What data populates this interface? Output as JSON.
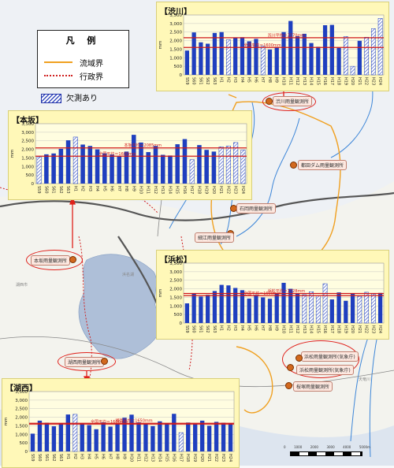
{
  "legend": {
    "title": "凡 例",
    "basin_boundary": "流域界",
    "admin_boundary": "行政界",
    "missing_label": "欠測あり",
    "colors": {
      "basin": "#f0a020",
      "admin": "#d02020",
      "bar": "#1f3fbf",
      "line": "#d01818"
    }
  },
  "stations": {
    "shibukawa": "渋川雨量観測所",
    "tsuzuki": "都田ダム雨量観測所",
    "ishioka": "石岡雨量観測所",
    "hosoe": "細江雨量観測所",
    "motosaka": "本坂雨量観測所",
    "kosai": "湖西雨量観測所",
    "hamamatsu": "浜松雨量観測所(気象庁)",
    "sakura": "桜塚雨量観測所"
  },
  "chart_data": [
    {
      "id": "shibukawa",
      "type": "bar",
      "title": "【渋川】",
      "ylabel": "mm",
      "ylim": [
        0,
        3500
      ],
      "yticks": [
        "0",
        "500",
        "1,000",
        "1,500",
        "2,000",
        "2,500",
        "3,000",
        "3,500"
      ],
      "categories": [
        "S59",
        "S60",
        "S61",
        "S62",
        "S63",
        "H1",
        "H2",
        "H3",
        "H4",
        "H5",
        "H6",
        "H7",
        "H8",
        "H9",
        "H10",
        "H11",
        "H12",
        "H13",
        "H14",
        "H15",
        "H16",
        "H17",
        "H18",
        "H19",
        "H20",
        "H21",
        "H22",
        "H23",
        "H24"
      ],
      "values": [
        1420,
        2480,
        1900,
        1820,
        2450,
        2500,
        2050,
        2150,
        2200,
        1960,
        2100,
        1680,
        1480,
        1620,
        2500,
        3150,
        2260,
        2400,
        1860,
        1640,
        2900,
        2920,
        1580,
        2240,
        500,
        1990,
        2200,
        2700,
        3300
      ],
      "missing": [
        false,
        false,
        false,
        false,
        false,
        false,
        true,
        false,
        false,
        false,
        false,
        true,
        false,
        false,
        false,
        false,
        false,
        false,
        false,
        false,
        false,
        false,
        false,
        true,
        true,
        false,
        true,
        true,
        true
      ],
      "reference_lines": [
        {
          "label": "渋川平均＝2170mm",
          "value": 2170
        },
        {
          "label": "全国平均＝1600mm",
          "value": 1600
        }
      ],
      "grid": true
    },
    {
      "id": "motosaka",
      "type": "bar",
      "title": "【本坂】",
      "ylabel": "mm",
      "ylim": [
        0,
        3500
      ],
      "yticks": [
        "0",
        "500",
        "1,000",
        "1,500",
        "2,000",
        "2,500",
        "3,000",
        "3,500"
      ],
      "categories": [
        "S59",
        "S60",
        "S61",
        "S62",
        "S63",
        "H1",
        "H2",
        "H3",
        "H4",
        "H5",
        "H6",
        "H7",
        "H8",
        "H9",
        "H10",
        "H11",
        "H12",
        "H13",
        "H14",
        "H15",
        "H16",
        "H17",
        "H18",
        "H19",
        "H20",
        "H21",
        "H22",
        "H23",
        "H24"
      ],
      "values": [
        1560,
        1710,
        1760,
        2030,
        2530,
        2720,
        2280,
        2200,
        2000,
        1770,
        1700,
        1580,
        1870,
        2850,
        2400,
        1840,
        2200,
        1680,
        1640,
        2300,
        2600,
        1400,
        2250,
        1970,
        1870,
        2150,
        2200,
        2400,
        1960
      ],
      "missing": [
        true,
        false,
        false,
        false,
        false,
        true,
        false,
        false,
        false,
        false,
        false,
        false,
        false,
        false,
        false,
        false,
        false,
        false,
        false,
        false,
        false,
        true,
        false,
        false,
        false,
        true,
        true,
        true,
        true
      ],
      "reference_lines": [
        {
          "label": "本坂平均＝2085mm",
          "value": 2085
        },
        {
          "label": "全国平均＝1600mm",
          "value": 1600
        }
      ],
      "grid": true
    },
    {
      "id": "hamamatsu",
      "type": "bar",
      "title": "【浜松】",
      "ylabel": "mm",
      "ylim": [
        0,
        3500
      ],
      "yticks": [
        "0",
        "500",
        "1,000",
        "1,500",
        "2,000",
        "2,500",
        "3,000",
        "3,500"
      ],
      "categories": [
        "S59",
        "S60",
        "S61",
        "S62",
        "S63",
        "H1",
        "H2",
        "H3",
        "H4",
        "H5",
        "H6",
        "H7",
        "H8",
        "H9",
        "H10",
        "H11",
        "H12",
        "H13",
        "H14",
        "H15",
        "H16",
        "H17",
        "H18",
        "H19",
        "H20",
        "H21",
        "H22",
        "H23",
        "H24"
      ],
      "values": [
        1150,
        1740,
        1550,
        1650,
        1870,
        2230,
        2200,
        2050,
        1920,
        1430,
        1650,
        1500,
        1420,
        1730,
        2350,
        2000,
        1740,
        1660,
        1830,
        1600,
        2300,
        1380,
        1790,
        1300,
        1740,
        1560,
        1800,
        1700,
        1760
      ],
      "missing": [
        false,
        false,
        false,
        false,
        false,
        false,
        false,
        false,
        false,
        false,
        false,
        false,
        false,
        false,
        false,
        false,
        false,
        true,
        true,
        true,
        true,
        false,
        false,
        false,
        false,
        true,
        true,
        true,
        false
      ],
      "reference_lines": [
        {
          "label": "浜松平均＝1728mm",
          "value": 1728
        },
        {
          "label": "全国平均＝1600mm",
          "value": 1600
        }
      ],
      "grid": true
    },
    {
      "id": "kosai",
      "type": "bar",
      "title": "【湖西】",
      "ylabel": "mm",
      "ylim": [
        0,
        3500
      ],
      "yticks": [
        "0",
        "500",
        "1,000",
        "1,500",
        "2,000",
        "2,500",
        "3,000",
        "3,500"
      ],
      "categories": [
        "S59",
        "S60",
        "S61",
        "S62",
        "S63",
        "H1",
        "H2",
        "H3",
        "H4",
        "H5",
        "H6",
        "H7",
        "H8",
        "H9",
        "H10",
        "H11",
        "H12",
        "H13",
        "H14",
        "H15",
        "H16",
        "H17",
        "H18",
        "H19",
        "H20",
        "H21",
        "H22",
        "H23",
        "H24"
      ],
      "values": [
        1040,
        1800,
        1680,
        1470,
        1640,
        2160,
        2170,
        1630,
        1540,
        1300,
        1700,
        1450,
        1590,
        1970,
        2150,
        1700,
        1600,
        1480,
        1760,
        1640,
        2200,
        1100,
        1690,
        1620,
        1800,
        1500,
        1730,
        1680,
        1640
      ],
      "missing": [
        false,
        false,
        false,
        false,
        false,
        false,
        true,
        false,
        false,
        false,
        false,
        false,
        false,
        false,
        false,
        false,
        false,
        false,
        false,
        false,
        false,
        true,
        false,
        false,
        false,
        false,
        false,
        false,
        false
      ],
      "reference_lines": [
        {
          "label": "湖西平均＝1650mm",
          "value": 1650
        },
        {
          "label": "全国平均＝1600mm",
          "value": 1600
        }
      ],
      "grid": true
    }
  ],
  "scale": [
    "0",
    "1000",
    "2000",
    "3000",
    "4000",
    "5000m"
  ]
}
